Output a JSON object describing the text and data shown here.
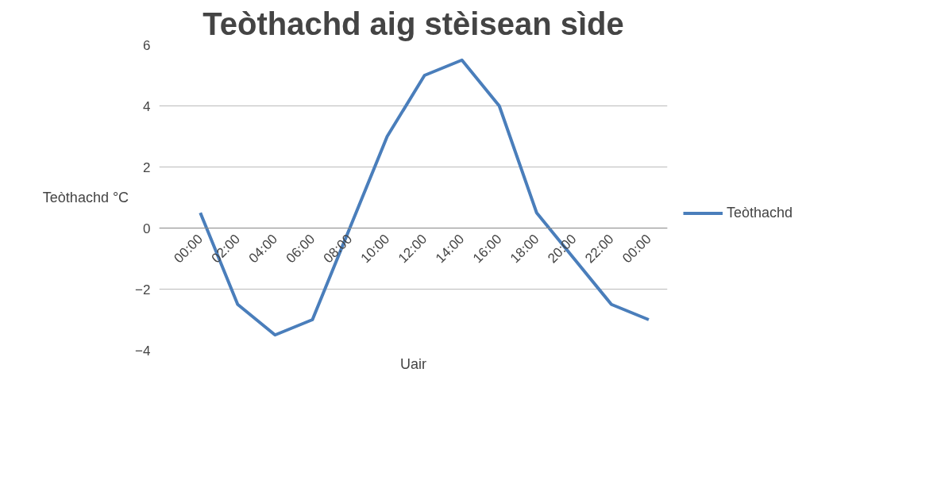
{
  "chart_data": {
    "type": "line",
    "title": "Teòthachd aig stèisean sìde",
    "xlabel": "Uair",
    "ylabel": "Teòthachd °C",
    "categories": [
      "00:00",
      "02:00",
      "04:00",
      "06:00",
      "08:00",
      "10:00",
      "12:00",
      "14:00",
      "16:00",
      "18:00",
      "20:00",
      "22:00",
      "00:00"
    ],
    "series": [
      {
        "name": "Teòthachd",
        "color": "#4a7ebb",
        "values": [
          0.5,
          -2.5,
          -3.5,
          -3,
          0,
          3,
          5,
          5.5,
          4,
          0.5,
          -1,
          -2.5,
          -3
        ]
      }
    ],
    "ylim": [
      -4,
      6
    ],
    "yticks": [
      -4,
      -2,
      0,
      2,
      4,
      6
    ],
    "grid": "y",
    "legend": "right",
    "marker": "none",
    "line_style": "solid"
  }
}
